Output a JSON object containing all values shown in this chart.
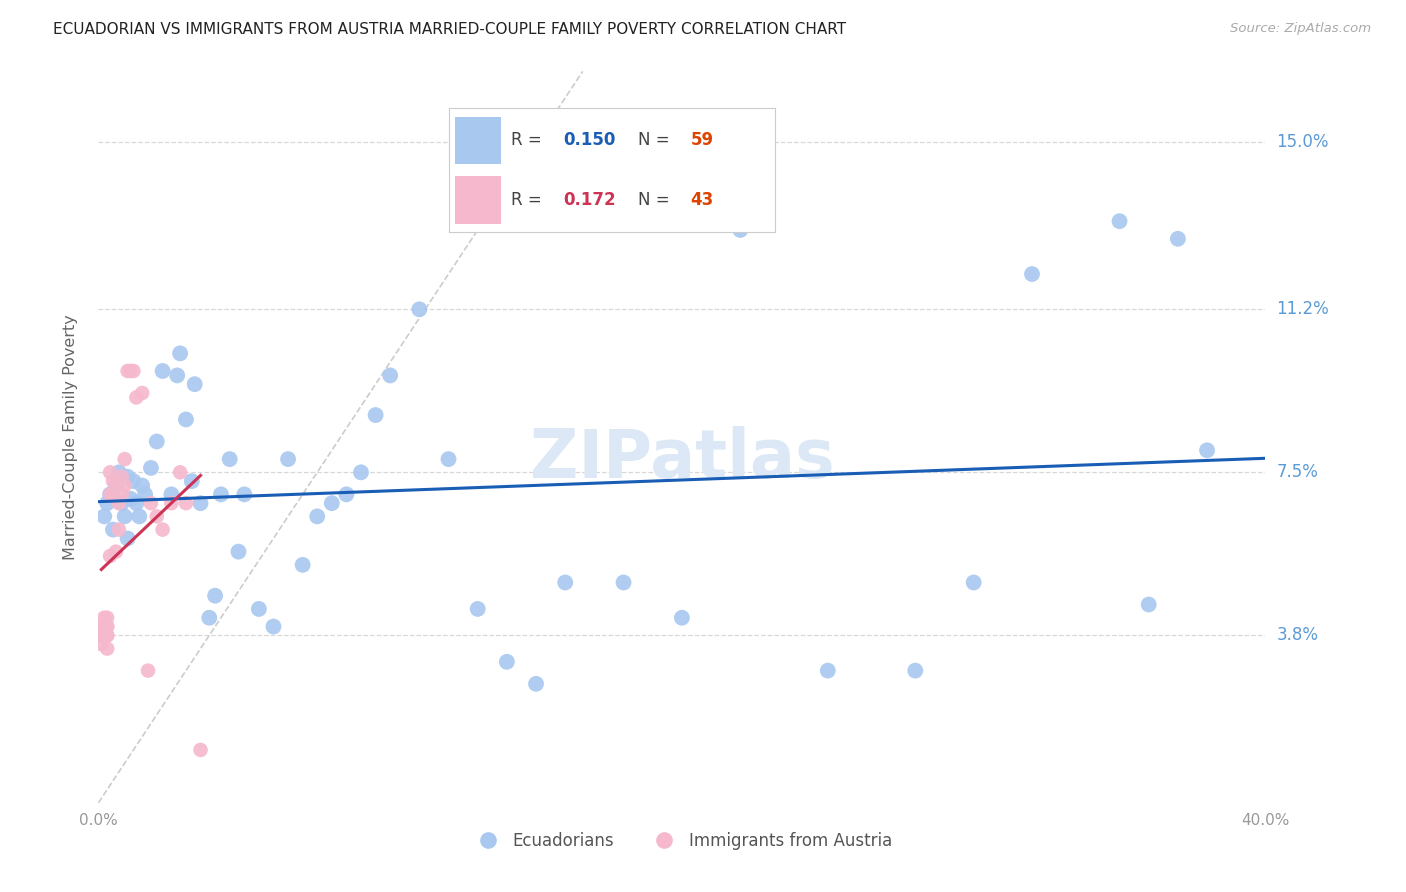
{
  "title": "ECUADORIAN VS IMMIGRANTS FROM AUSTRIA MARRIED-COUPLE FAMILY POVERTY CORRELATION CHART",
  "source": "Source: ZipAtlas.com",
  "ylabel": "Married-Couple Family Poverty",
  "xlim": [
    0.0,
    0.4
  ],
  "ylim": [
    0.0,
    0.166
  ],
  "yticks": [
    0.038,
    0.075,
    0.112,
    0.15
  ],
  "ytick_labels": [
    "3.8%",
    "7.5%",
    "11.2%",
    "15.0%"
  ],
  "xticks": [
    0.0,
    0.05,
    0.1,
    0.15,
    0.2,
    0.25,
    0.3,
    0.35,
    0.4
  ],
  "xtick_labels": [
    "0.0%",
    "",
    "",
    "",
    "",
    "",
    "",
    "",
    "40.0%"
  ],
  "blue_R": 0.15,
  "blue_N": 59,
  "pink_R": 0.172,
  "pink_N": 43,
  "blue_color": "#a8c8f0",
  "pink_color": "#f5b8cc",
  "blue_line_color": "#1a5db5",
  "pink_line_color": "#cc3355",
  "diagonal_color": "#cccccc",
  "background_color": "#ffffff",
  "grid_color": "#d8d8d8",
  "title_color": "#222222",
  "source_color": "#aaaaaa",
  "ylabel_color": "#666666",
  "tick_color": "#999999",
  "right_tick_color": "#5b9bd5",
  "legend_r_color": "#1a5db5",
  "legend_n_color": "#dd4400",
  "watermark_color": "#dce8f5",
  "blue_x": [
    0.002,
    0.003,
    0.004,
    0.005,
    0.006,
    0.007,
    0.008,
    0.009,
    0.01,
    0.01,
    0.011,
    0.012,
    0.013,
    0.014,
    0.015,
    0.016,
    0.018,
    0.02,
    0.022,
    0.025,
    0.027,
    0.028,
    0.03,
    0.032,
    0.033,
    0.035,
    0.038,
    0.04,
    0.042,
    0.045,
    0.048,
    0.05,
    0.055,
    0.06,
    0.065,
    0.07,
    0.075,
    0.08,
    0.085,
    0.09,
    0.095,
    0.1,
    0.11,
    0.12,
    0.13,
    0.14,
    0.15,
    0.16,
    0.18,
    0.2,
    0.22,
    0.25,
    0.28,
    0.3,
    0.32,
    0.35,
    0.36,
    0.37,
    0.38
  ],
  "blue_y": [
    0.065,
    0.068,
    0.07,
    0.062,
    0.072,
    0.075,
    0.068,
    0.065,
    0.06,
    0.074,
    0.069,
    0.073,
    0.068,
    0.065,
    0.072,
    0.07,
    0.076,
    0.082,
    0.098,
    0.07,
    0.097,
    0.102,
    0.087,
    0.073,
    0.095,
    0.068,
    0.042,
    0.047,
    0.07,
    0.078,
    0.057,
    0.07,
    0.044,
    0.04,
    0.078,
    0.054,
    0.065,
    0.068,
    0.07,
    0.075,
    0.088,
    0.097,
    0.112,
    0.078,
    0.044,
    0.032,
    0.027,
    0.05,
    0.05,
    0.042,
    0.13,
    0.03,
    0.03,
    0.05,
    0.12,
    0.132,
    0.045,
    0.128,
    0.08
  ],
  "pink_x": [
    0.001,
    0.001,
    0.001,
    0.001,
    0.001,
    0.002,
    0.002,
    0.002,
    0.002,
    0.002,
    0.002,
    0.003,
    0.003,
    0.003,
    0.003,
    0.003,
    0.003,
    0.004,
    0.004,
    0.004,
    0.005,
    0.005,
    0.006,
    0.006,
    0.007,
    0.007,
    0.008,
    0.008,
    0.009,
    0.009,
    0.01,
    0.011,
    0.012,
    0.013,
    0.015,
    0.017,
    0.018,
    0.02,
    0.022,
    0.025,
    0.028,
    0.03,
    0.035
  ],
  "pink_y": [
    0.038,
    0.036,
    0.04,
    0.04,
    0.038,
    0.038,
    0.038,
    0.04,
    0.038,
    0.042,
    0.038,
    0.038,
    0.04,
    0.04,
    0.042,
    0.035,
    0.038,
    0.056,
    0.07,
    0.075,
    0.07,
    0.073,
    0.057,
    0.073,
    0.062,
    0.068,
    0.07,
    0.074,
    0.072,
    0.078,
    0.098,
    0.098,
    0.098,
    0.092,
    0.093,
    0.03,
    0.068,
    0.065,
    0.062,
    0.068,
    0.075,
    0.068,
    0.012
  ],
  "pink_line_start_x": 0.001,
  "pink_line_end_x": 0.035
}
